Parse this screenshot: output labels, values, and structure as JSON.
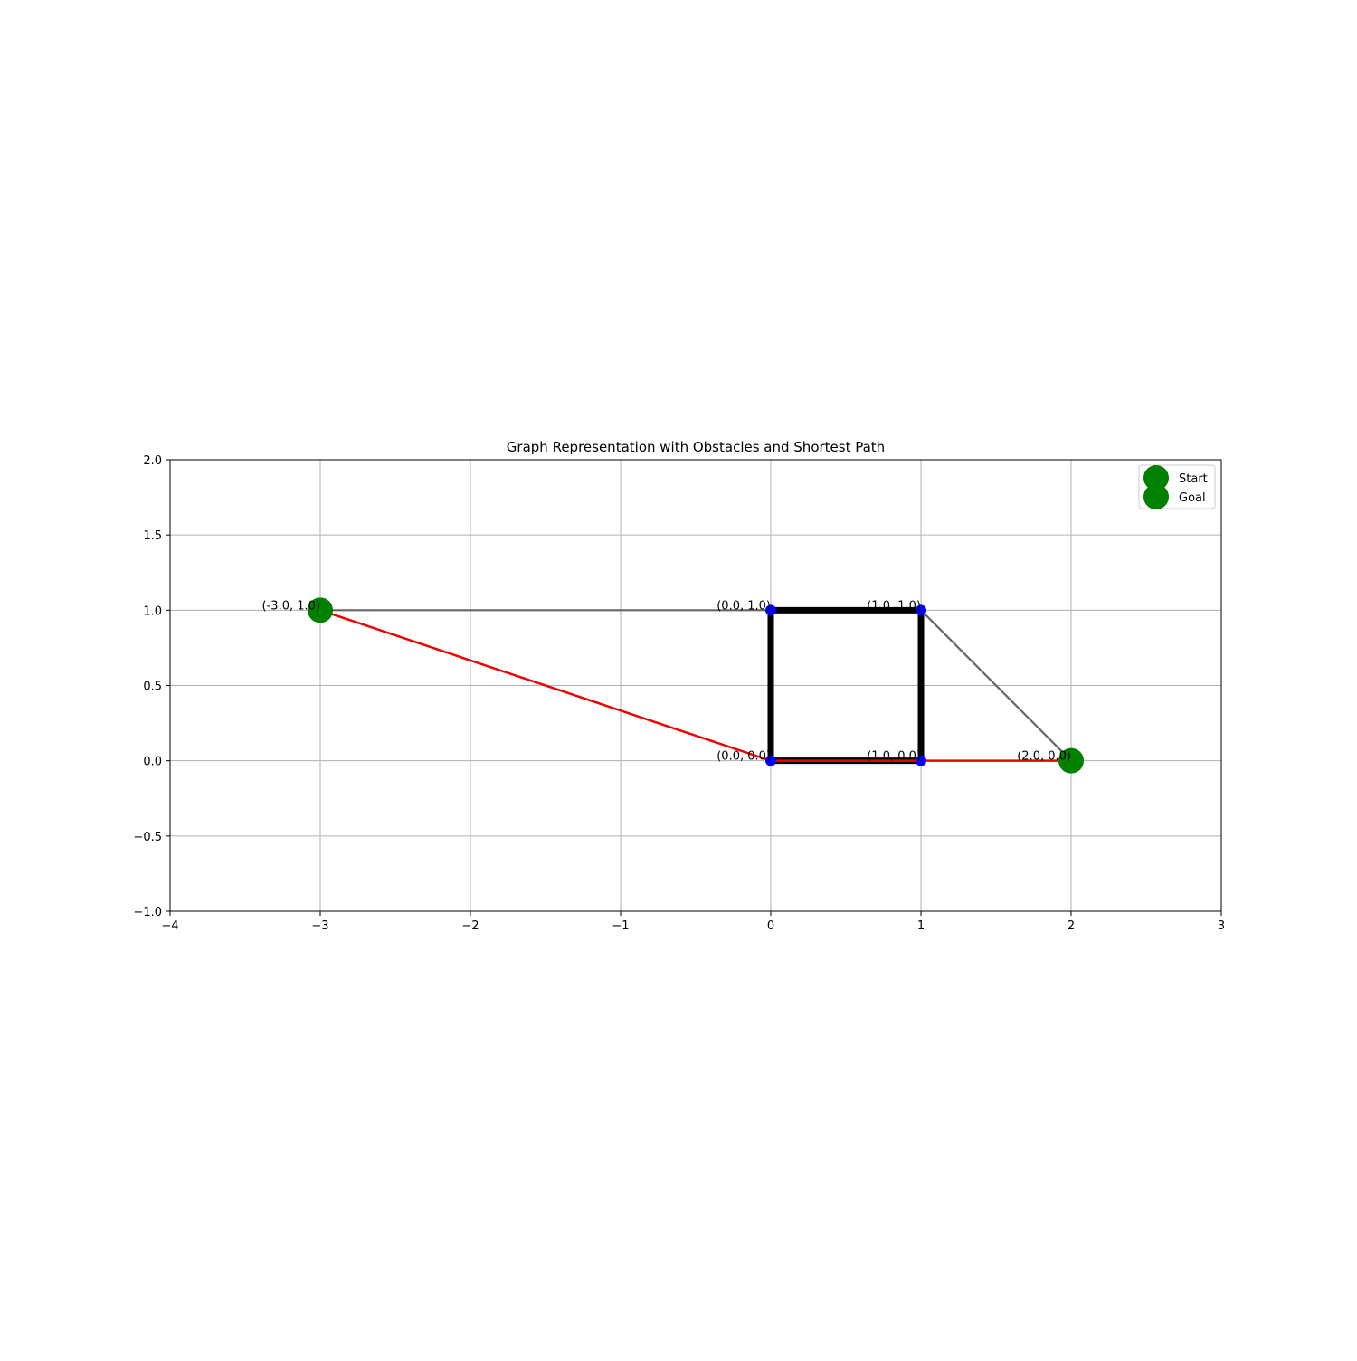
{
  "chart_data": {
    "type": "scatter",
    "title": "Graph Representation with Obstacles and Shortest Path",
    "xlabel": "",
    "ylabel": "",
    "xlim": [
      -4,
      3
    ],
    "ylim": [
      -1,
      2
    ],
    "x_ticks": [
      -4,
      -3,
      -2,
      -1,
      0,
      1,
      2,
      3
    ],
    "x_tick_labels": [
      "−4",
      "−3",
      "−2",
      "−1",
      "0",
      "1",
      "2",
      "3"
    ],
    "y_ticks": [
      -1.0,
      -0.5,
      0.0,
      0.5,
      1.0,
      1.5,
      2.0
    ],
    "y_tick_labels": [
      "−1.0",
      "−0.5",
      "0.0",
      "0.5",
      "1.0",
      "1.5",
      "2.0"
    ],
    "grid": true,
    "legend_position": "top-right",
    "nodes": [
      {
        "x": -3,
        "y": 1,
        "label": "(-3.0, 1.0)"
      },
      {
        "x": 0,
        "y": 1,
        "label": "(0.0, 1.0)"
      },
      {
        "x": 1,
        "y": 1,
        "label": "(1.0, 1.0)"
      },
      {
        "x": 0,
        "y": 0,
        "label": "(0.0, 0.0)"
      },
      {
        "x": 1,
        "y": 0,
        "label": "(1.0, 0.0)"
      },
      {
        "x": 2,
        "y": 0,
        "label": "(2.0, 0.0)"
      }
    ],
    "graph_edges": [
      {
        "from": [
          -3,
          1
        ],
        "to": [
          0,
          1
        ]
      },
      {
        "from": [
          1,
          1
        ],
        "to": [
          2,
          0
        ]
      },
      {
        "from": [
          0,
          0
        ],
        "to": [
          1,
          0
        ]
      }
    ],
    "obstacle": [
      [
        0,
        0
      ],
      [
        1,
        0
      ],
      [
        1,
        1
      ],
      [
        0,
        1
      ]
    ],
    "shortest_path": [
      [
        -3,
        1
      ],
      [
        0,
        0
      ],
      [
        1,
        0
      ],
      [
        2,
        0
      ]
    ],
    "start": {
      "x": -3,
      "y": 1
    },
    "goal": {
      "x": 2,
      "y": 0
    },
    "legend": [
      {
        "label": "Start",
        "color": "#008000"
      },
      {
        "label": "Goal",
        "color": "#008000"
      }
    ],
    "colors": {
      "node": "#0000ff",
      "edge": "#666666",
      "obstacle": "#000000",
      "path": "#ee0000",
      "start_goal": "#008000",
      "grid": "#b0b0b0"
    }
  }
}
